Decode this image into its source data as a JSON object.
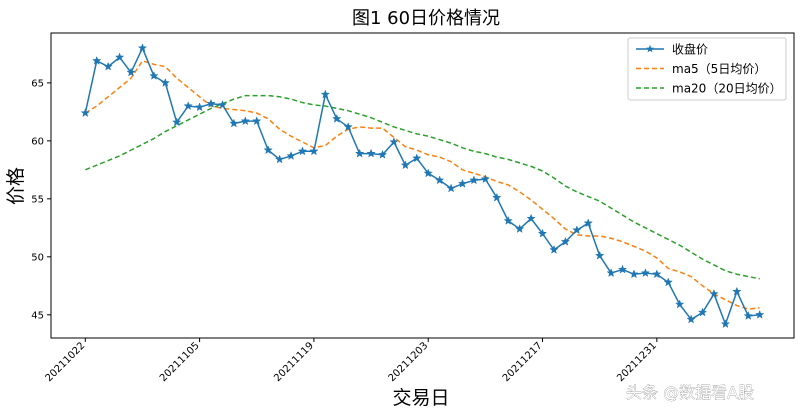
{
  "chart_data": {
    "type": "line",
    "title": "图1  60日价格情况",
    "xlabel": "交易日",
    "ylabel": "价格",
    "x_tick_labels": [
      "20211022",
      "20211105",
      "20211119",
      "20211203",
      "20211217",
      "20211231"
    ],
    "x_tick_index": [
      0,
      10,
      20,
      30,
      40,
      50
    ],
    "y_ticks": [
      45,
      50,
      55,
      60,
      65
    ],
    "ylim": [
      43,
      69.3
    ],
    "xlim": [
      -3,
      62
    ],
    "grid": false,
    "legend_position": "top-right",
    "series": [
      {
        "name": "收盘价",
        "color": "#1f77b4",
        "style": "solid-star",
        "values": [
          62.4,
          66.9,
          66.4,
          67.2,
          65.9,
          68.0,
          65.6,
          65.0,
          61.6,
          63.0,
          62.9,
          63.2,
          63.1,
          61.5,
          61.7,
          61.7,
          59.2,
          58.4,
          58.7,
          59.1,
          59.1,
          64.0,
          61.9,
          61.2,
          58.9,
          58.9,
          58.8,
          59.9,
          57.9,
          58.5,
          57.2,
          56.6,
          55.9,
          56.3,
          56.6,
          56.7,
          55.1,
          53.1,
          52.4,
          53.3,
          52.0,
          50.6,
          51.3,
          52.3,
          52.9,
          50.1,
          48.6,
          48.9,
          48.5,
          48.6,
          48.5,
          47.8,
          45.9,
          44.6,
          45.2,
          46.8,
          44.2,
          47.0,
          44.9,
          45.0
        ]
      },
      {
        "name": "ma5（5日均价）",
        "color": "#ff7f0e",
        "style": "dashed",
        "values": [
          62.4,
          63.0,
          63.8,
          64.6,
          65.4,
          66.9,
          66.6,
          66.4,
          65.4,
          64.6,
          63.8,
          63.0,
          62.8,
          62.7,
          62.6,
          62.4,
          61.9,
          61.0,
          60.4,
          59.9,
          59.4,
          59.6,
          60.4,
          61.0,
          61.2,
          61.1,
          61.1,
          60.3,
          59.5,
          59.2,
          58.8,
          58.6,
          58.2,
          57.5,
          57.2,
          56.9,
          56.5,
          56.2,
          55.6,
          54.9,
          54.1,
          53.3,
          52.4,
          51.9,
          51.8,
          51.8,
          51.6,
          51.3,
          50.9,
          50.5,
          49.9,
          49.0,
          48.7,
          48.3,
          47.5,
          46.8,
          46.3,
          45.8,
          45.5,
          45.6
        ]
      },
      {
        "name": "ma20（20日均价）",
        "color": "#2ca02c",
        "style": "dashed",
        "values": [
          57.5,
          57.9,
          58.3,
          58.7,
          59.2,
          59.7,
          60.2,
          60.8,
          61.3,
          61.8,
          62.3,
          62.8,
          63.2,
          63.6,
          63.9,
          63.9,
          63.9,
          63.8,
          63.6,
          63.3,
          63.1,
          63.0,
          62.8,
          62.6,
          62.3,
          62.0,
          61.6,
          61.2,
          60.9,
          60.6,
          60.4,
          60.1,
          59.8,
          59.4,
          59.1,
          58.9,
          58.6,
          58.4,
          58.1,
          57.8,
          57.4,
          56.8,
          56.1,
          55.6,
          55.2,
          54.8,
          54.2,
          53.6,
          53.0,
          52.5,
          52.0,
          51.5,
          51.0,
          50.4,
          49.8,
          49.3,
          48.8,
          48.5,
          48.3,
          48.1
        ]
      }
    ]
  },
  "watermark": "头条 @数据看A股"
}
